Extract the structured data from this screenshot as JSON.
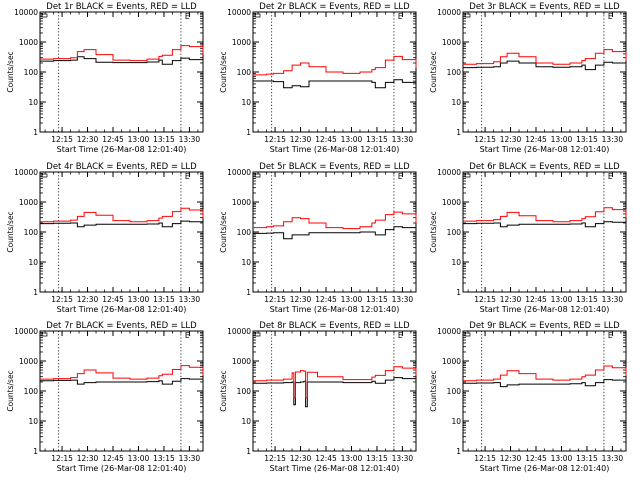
{
  "chart_data": [
    {
      "type": "line",
      "title": "Det 1r BLACK = Events, RED = LLD",
      "xlabel": "Start Time (26-Mar-08 12:01:40)",
      "ylabel": "Counts/sec",
      "yscale": "log",
      "ylim": [
        1,
        10000
      ],
      "xlim": [
        "12:02",
        "13:38"
      ],
      "x_ticks": [
        "12:15",
        "12:30",
        "12:45",
        "13:00",
        "13:15",
        "13:30"
      ],
      "y_ticks": [
        "1",
        "10",
        "100",
        "1000",
        "10000"
      ],
      "grid": false,
      "legend": "title",
      "marker_top_right": "E",
      "series": [
        {
          "name": "BLACK = Events",
          "color": "#000000",
          "x": [
            "12:02",
            "12:10",
            "12:20",
            "12:24",
            "12:28",
            "12:35",
            "12:45",
            "12:55",
            "13:05",
            "13:12",
            "13:14",
            "13:20",
            "13:25",
            "13:30",
            "13:38"
          ],
          "values": [
            230,
            240,
            250,
            320,
            280,
            210,
            205,
            205,
            215,
            250,
            180,
            240,
            290,
            260,
            160
          ]
        },
        {
          "name": "RED = LLD",
          "color": "#ff0000",
          "x": [
            "12:02",
            "12:10",
            "12:20",
            "12:24",
            "12:28",
            "12:35",
            "12:45",
            "12:55",
            "13:05",
            "13:12",
            "13:14",
            "13:20",
            "13:25",
            "13:30",
            "13:38"
          ],
          "values": [
            270,
            280,
            300,
            480,
            560,
            380,
            250,
            240,
            270,
            330,
            360,
            560,
            760,
            700,
            380
          ]
        }
      ]
    },
    {
      "type": "line",
      "title": "Det 2r BLACK = Events, RED = LLD",
      "xlabel": "Start Time (26-Mar-08 12:01:40)",
      "ylabel": "Counts/sec",
      "yscale": "log",
      "ylim": [
        1,
        10000
      ],
      "xlim": [
        "12:02",
        "13:38"
      ],
      "x_ticks": [
        "12:15",
        "12:30",
        "12:45",
        "13:00",
        "13:15",
        "13:30"
      ],
      "y_ticks": [
        "1",
        "10",
        "100",
        "1000",
        "10000"
      ],
      "grid": false,
      "legend": "title",
      "marker_top_right": "E",
      "series": [
        {
          "name": "BLACK = Events",
          "color": "#000000",
          "x": [
            "12:02",
            "12:10",
            "12:14",
            "12:20",
            "12:25",
            "12:30",
            "12:35",
            "12:45",
            "12:55",
            "13:05",
            "13:12",
            "13:14",
            "13:20",
            "13:25",
            "13:30",
            "13:38"
          ],
          "values": [
            50,
            50,
            48,
            30,
            35,
            32,
            50,
            50,
            50,
            50,
            45,
            30,
            45,
            55,
            45,
            30
          ]
        },
        {
          "name": "RED = LLD",
          "color": "#ff0000",
          "x": [
            "12:02",
            "12:10",
            "12:14",
            "12:20",
            "12:25",
            "12:30",
            "12:35",
            "12:45",
            "12:55",
            "13:05",
            "13:12",
            "13:14",
            "13:20",
            "13:25",
            "13:30",
            "13:38"
          ],
          "values": [
            80,
            85,
            90,
            110,
            170,
            200,
            150,
            100,
            90,
            100,
            120,
            140,
            250,
            330,
            260,
            140
          ]
        }
      ]
    },
    {
      "type": "line",
      "title": "Det 3r BLACK = Events, RED = LLD",
      "xlabel": "Start Time (26-Mar-08 12:01:40)",
      "ylabel": "Counts/sec",
      "yscale": "log",
      "ylim": [
        1,
        10000
      ],
      "xlim": [
        "12:02",
        "13:38"
      ],
      "x_ticks": [
        "12:15",
        "12:30",
        "12:45",
        "13:00",
        "13:15",
        "13:30"
      ],
      "y_ticks": [
        "1",
        "10",
        "100",
        "1000",
        "10000"
      ],
      "grid": false,
      "legend": "title",
      "marker_top_right": "E",
      "series": [
        {
          "name": "BLACK = Events",
          "color": "#000000",
          "x": [
            "12:02",
            "12:10",
            "12:20",
            "12:24",
            "12:28",
            "12:35",
            "12:45",
            "12:55",
            "13:05",
            "13:12",
            "13:14",
            "13:20",
            "13:25",
            "13:30",
            "13:38"
          ],
          "values": [
            140,
            145,
            150,
            200,
            230,
            200,
            150,
            145,
            150,
            170,
            120,
            170,
            210,
            200,
            120
          ]
        },
        {
          "name": "RED = LLD",
          "color": "#ff0000",
          "x": [
            "12:02",
            "12:10",
            "12:20",
            "12:24",
            "12:28",
            "12:35",
            "12:45",
            "12:55",
            "13:05",
            "13:12",
            "13:14",
            "13:20",
            "13:25",
            "13:30",
            "13:38"
          ],
          "values": [
            180,
            190,
            220,
            320,
            420,
            320,
            200,
            180,
            200,
            240,
            280,
            420,
            560,
            480,
            240
          ]
        }
      ]
    },
    {
      "type": "line",
      "title": "Det 4r BLACK = Events, RED = LLD",
      "xlabel": "Start Time (26-Mar-08 12:01:40)",
      "ylabel": "Counts/sec",
      "yscale": "log",
      "ylim": [
        1,
        10000
      ],
      "xlim": [
        "12:02",
        "13:38"
      ],
      "x_ticks": [
        "12:15",
        "12:30",
        "12:45",
        "13:00",
        "13:15",
        "13:30"
      ],
      "y_ticks": [
        "1",
        "10",
        "100",
        "1000",
        "10000"
      ],
      "grid": false,
      "legend": "title",
      "marker_top_right": "E",
      "series": [
        {
          "name": "BLACK = Events",
          "color": "#000000",
          "x": [
            "12:02",
            "12:10",
            "12:20",
            "12:24",
            "12:28",
            "12:35",
            "12:45",
            "12:55",
            "13:05",
            "13:12",
            "13:14",
            "13:20",
            "13:25",
            "13:30",
            "13:38"
          ],
          "values": [
            190,
            195,
            200,
            150,
            170,
            180,
            180,
            180,
            185,
            200,
            150,
            190,
            230,
            220,
            140
          ]
        },
        {
          "name": "RED = LLD",
          "color": "#ff0000",
          "x": [
            "12:02",
            "12:10",
            "12:20",
            "12:24",
            "12:28",
            "12:35",
            "12:45",
            "12:55",
            "13:05",
            "13:12",
            "13:14",
            "13:20",
            "13:25",
            "13:30",
            "13:38"
          ],
          "values": [
            220,
            230,
            250,
            330,
            450,
            360,
            240,
            220,
            240,
            290,
            330,
            480,
            620,
            540,
            300
          ]
        }
      ]
    },
    {
      "type": "line",
      "title": "Det 5r BLACK = Events, RED = LLD",
      "xlabel": "Start Time (26-Mar-08 12:01:40)",
      "ylabel": "Counts/sec",
      "yscale": "log",
      "ylim": [
        1,
        10000
      ],
      "xlim": [
        "12:02",
        "13:38"
      ],
      "x_ticks": [
        "12:15",
        "12:30",
        "12:45",
        "13:00",
        "13:15",
        "13:30"
      ],
      "y_ticks": [
        "1",
        "10",
        "100",
        "1000",
        "10000"
      ],
      "grid": false,
      "legend": "title",
      "marker_top_right": "E",
      "series": [
        {
          "name": "BLACK = Events",
          "color": "#000000",
          "x": [
            "12:02",
            "12:10",
            "12:14",
            "12:20",
            "12:25",
            "12:30",
            "12:35",
            "12:45",
            "12:55",
            "13:05",
            "13:12",
            "13:14",
            "13:20",
            "13:25",
            "13:30",
            "13:38"
          ],
          "values": [
            90,
            92,
            95,
            60,
            80,
            80,
            95,
            95,
            95,
            100,
            100,
            80,
            120,
            150,
            140,
            100
          ]
        },
        {
          "name": "RED = LLD",
          "color": "#ff0000",
          "x": [
            "12:02",
            "12:10",
            "12:14",
            "12:20",
            "12:25",
            "12:30",
            "12:35",
            "12:45",
            "12:55",
            "13:05",
            "13:12",
            "13:14",
            "13:20",
            "13:25",
            "13:30",
            "13:38"
          ],
          "values": [
            140,
            150,
            160,
            220,
            300,
            280,
            200,
            140,
            130,
            150,
            200,
            250,
            380,
            460,
            400,
            200
          ]
        }
      ]
    },
    {
      "type": "line",
      "title": "Det 6r BLACK = Events, RED = LLD",
      "xlabel": "Start Time (26-Mar-08 12:01:40)",
      "ylabel": "Counts/sec",
      "yscale": "log",
      "ylim": [
        1,
        10000
      ],
      "xlim": [
        "12:02",
        "13:38"
      ],
      "x_ticks": [
        "12:15",
        "12:30",
        "12:45",
        "13:00",
        "13:15",
        "13:30"
      ],
      "y_ticks": [
        "1",
        "10",
        "100",
        "1000",
        "10000"
      ],
      "grid": false,
      "legend": "title",
      "marker_top_right": "E",
      "series": [
        {
          "name": "BLACK = Events",
          "color": "#000000",
          "x": [
            "12:02",
            "12:10",
            "12:20",
            "12:24",
            "12:28",
            "12:35",
            "12:45",
            "12:55",
            "13:05",
            "13:12",
            "13:14",
            "13:20",
            "13:25",
            "13:30",
            "13:38"
          ],
          "values": [
            190,
            195,
            200,
            150,
            170,
            180,
            180,
            180,
            185,
            200,
            150,
            190,
            220,
            210,
            130
          ]
        },
        {
          "name": "RED = LLD",
          "color": "#ff0000",
          "x": [
            "12:02",
            "12:10",
            "12:20",
            "12:24",
            "12:28",
            "12:35",
            "12:45",
            "12:55",
            "13:05",
            "13:12",
            "13:14",
            "13:20",
            "13:25",
            "13:30",
            "13:38"
          ],
          "values": [
            230,
            240,
            260,
            330,
            450,
            350,
            240,
            220,
            240,
            280,
            320,
            470,
            640,
            560,
            300
          ]
        }
      ]
    },
    {
      "type": "line",
      "title": "Det 7r BLACK = Events, RED = LLD",
      "xlabel": "Start Time (26-Mar-08 12:01:40)",
      "ylabel": "Counts/sec",
      "yscale": "log",
      "ylim": [
        1,
        10000
      ],
      "xlim": [
        "12:02",
        "13:38"
      ],
      "x_ticks": [
        "12:15",
        "12:30",
        "12:45",
        "13:00",
        "13:15",
        "13:30"
      ],
      "y_ticks": [
        "1",
        "10",
        "100",
        "1000",
        "10000"
      ],
      "grid": false,
      "legend": "title",
      "marker_top_right": "E",
      "series": [
        {
          "name": "BLACK = Events",
          "color": "#000000",
          "x": [
            "12:02",
            "12:10",
            "12:20",
            "12:24",
            "12:28",
            "12:35",
            "12:45",
            "12:55",
            "13:05",
            "13:12",
            "13:14",
            "13:20",
            "13:25",
            "13:30",
            "13:38"
          ],
          "values": [
            220,
            225,
            230,
            170,
            190,
            200,
            200,
            200,
            205,
            220,
            170,
            210,
            260,
            250,
            160
          ]
        },
        {
          "name": "RED = LLD",
          "color": "#ff0000",
          "x": [
            "12:02",
            "12:10",
            "12:20",
            "12:24",
            "12:28",
            "12:35",
            "12:45",
            "12:55",
            "13:05",
            "13:12",
            "13:14",
            "13:20",
            "13:25",
            "13:30",
            "13:38"
          ],
          "values": [
            250,
            260,
            280,
            380,
            500,
            400,
            270,
            250,
            270,
            320,
            360,
            520,
            700,
            620,
            330
          ]
        }
      ]
    },
    {
      "type": "line",
      "title": "Det 8r BLACK = Events, RED = LLD",
      "xlabel": "Start Time (26-Mar-08 12:01:40)",
      "ylabel": "Counts/sec",
      "yscale": "log",
      "ylim": [
        1,
        10000
      ],
      "xlim": [
        "12:02",
        "13:38"
      ],
      "x_ticks": [
        "12:15",
        "12:30",
        "12:45",
        "13:00",
        "13:15",
        "13:30"
      ],
      "y_ticks": [
        "1",
        "10",
        "100",
        "1000",
        "10000"
      ],
      "grid": false,
      "legend": "title",
      "marker_top_right": "E",
      "series": [
        {
          "name": "BLACK = Events",
          "color": "#000000",
          "x": [
            "12:02",
            "12:10",
            "12:20",
            "12:25",
            "12:26",
            "12:27",
            "12:30",
            "12:32",
            "12:33",
            "12:34",
            "12:40",
            "12:55",
            "13:05",
            "13:12",
            "13:14",
            "13:20",
            "13:25",
            "13:30",
            "13:38"
          ],
          "values": [
            180,
            185,
            190,
            200,
            35,
            190,
            200,
            210,
            30,
            200,
            200,
            190,
            190,
            210,
            180,
            230,
            280,
            260,
            170
          ]
        },
        {
          "name": "RED = LLD",
          "color": "#ff0000",
          "x": [
            "12:02",
            "12:10",
            "12:20",
            "12:25",
            "12:26",
            "12:27",
            "12:30",
            "12:32",
            "12:33",
            "12:34",
            "12:40",
            "12:55",
            "13:05",
            "13:12",
            "13:14",
            "13:20",
            "13:25",
            "13:30",
            "13:38"
          ],
          "values": [
            220,
            230,
            250,
            400,
            60,
            430,
            480,
            460,
            60,
            420,
            300,
            240,
            240,
            290,
            330,
            480,
            640,
            580,
            330
          ]
        }
      ]
    },
    {
      "type": "line",
      "title": "Det 9r BLACK = Events, RED = LLD",
      "xlabel": "Start Time (26-Mar-08 12:01:40)",
      "ylabel": "Counts/sec",
      "yscale": "log",
      "ylim": [
        1,
        10000
      ],
      "xlim": [
        "12:02",
        "13:38"
      ],
      "x_ticks": [
        "12:15",
        "12:30",
        "12:45",
        "13:00",
        "13:15",
        "13:30"
      ],
      "y_ticks": [
        "1",
        "10",
        "100",
        "1000",
        "10000"
      ],
      "grid": false,
      "legend": "title",
      "marker_top_right": "E",
      "series": [
        {
          "name": "BLACK = Events",
          "color": "#000000",
          "x": [
            "12:02",
            "12:10",
            "12:20",
            "12:24",
            "12:28",
            "12:35",
            "12:45",
            "12:55",
            "13:05",
            "13:12",
            "13:14",
            "13:20",
            "13:25",
            "13:30",
            "13:38"
          ],
          "values": [
            180,
            185,
            190,
            140,
            160,
            170,
            170,
            170,
            175,
            190,
            150,
            190,
            240,
            230,
            140
          ]
        },
        {
          "name": "RED = LLD",
          "color": "#ff0000",
          "x": [
            "12:02",
            "12:10",
            "12:20",
            "12:24",
            "12:28",
            "12:35",
            "12:45",
            "12:55",
            "13:05",
            "13:12",
            "13:14",
            "13:20",
            "13:25",
            "13:30",
            "13:38"
          ],
          "values": [
            220,
            230,
            250,
            340,
            470,
            380,
            250,
            230,
            250,
            300,
            340,
            500,
            680,
            600,
            320
          ]
        }
      ]
    }
  ]
}
